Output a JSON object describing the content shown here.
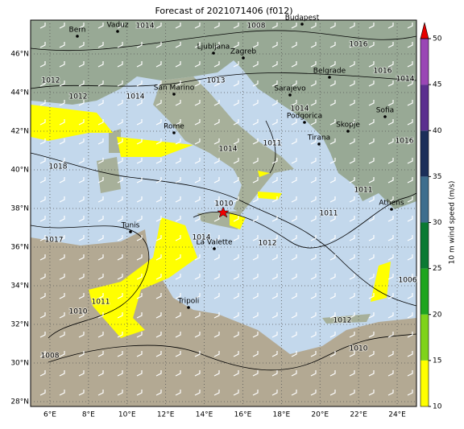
{
  "map": {
    "title": "Forecast of 2021071406 (f012)",
    "xlim": [
      5,
      25
    ],
    "ylim": [
      27.75,
      47.75
    ],
    "xticks": [
      {
        "value": 6,
        "label": "6°E"
      },
      {
        "value": 8,
        "label": "8°E"
      },
      {
        "value": 10,
        "label": "10°E"
      },
      {
        "value": 12,
        "label": "12°E"
      },
      {
        "value": 14,
        "label": "14°E"
      },
      {
        "value": 16,
        "label": "16°E"
      },
      {
        "value": 18,
        "label": "18°E"
      },
      {
        "value": 20,
        "label": "20°E"
      },
      {
        "value": 22,
        "label": "22°E"
      },
      {
        "value": 24,
        "label": "24°E"
      }
    ],
    "yticks": [
      {
        "value": 28,
        "label": "28°N"
      },
      {
        "value": 30,
        "label": "30°N"
      },
      {
        "value": 32,
        "label": "32°N"
      },
      {
        "value": 34,
        "label": "34°N"
      },
      {
        "value": 36,
        "label": "36°N"
      },
      {
        "value": 38,
        "label": "38°N"
      },
      {
        "value": 40,
        "label": "40°N"
      },
      {
        "value": 42,
        "label": "42°N"
      },
      {
        "value": 44,
        "label": "44°N"
      },
      {
        "value": 46,
        "label": "46°N"
      }
    ],
    "grid": true,
    "cities": [
      "Bern",
      "Vaduz",
      "Budapest",
      "Ljubljana",
      "Zagreb",
      "Belgrade",
      "San Marino",
      "Sarajevo",
      "Rome",
      "Podgorica",
      "Skopje",
      "Sofia",
      "Tirana",
      "Athens",
      "Tunis",
      "La Valette",
      "Tripoli"
    ],
    "isobar_labels": [
      "1014",
      "1008",
      "1016",
      "1012",
      "1012",
      "1014",
      "1013",
      "1014",
      "1016",
      "1014",
      "1016",
      "1018",
      "1011",
      "1014",
      "1011",
      "1011",
      "1010",
      "1017",
      "1012",
      "1014",
      "1011",
      "1006",
      "1012",
      "1010",
      "1008",
      "1010"
    ],
    "colorbar": {
      "label": "10 m wind speed (m/s)",
      "lim": [
        10,
        50
      ],
      "ticks": [
        10,
        15,
        20,
        25,
        30,
        35,
        40,
        45,
        50
      ],
      "colors": [
        "#ffff00",
        "#7fd31a",
        "#1fa51f",
        "#0a7a33",
        "#3e6e8e",
        "#1c2f5a",
        "#5b2f8f",
        "#9a46b5"
      ],
      "extend_color": "#e60000"
    }
  }
}
